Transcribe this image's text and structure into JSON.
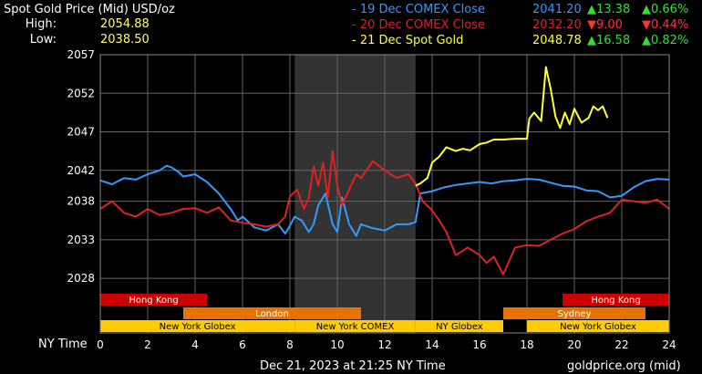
{
  "title": "Spot Gold Price (Mid) USD/oz",
  "high_label": "High:",
  "high_value": "2054.88",
  "low_label": "Low:",
  "low_value": "2038.50",
  "legend": [
    {
      "label": "- 19 Dec COMEX Close",
      "price": "2041.20",
      "change": "13.38",
      "pct": "0.66%",
      "dir": "up",
      "color": "#3399ff"
    },
    {
      "label": "- 20 Dec COMEX Close",
      "price": "2032.20",
      "change": "9.00",
      "pct": "0.44%",
      "dir": "down",
      "color": "#dd2222"
    },
    {
      "label": "- 21 Dec Spot Gold",
      "price": "2048.78",
      "change": "16.58",
      "pct": "0.82%",
      "dir": "up",
      "color": "#ffff33"
    }
  ],
  "x_axis_label": "NY Time",
  "footer_date": "Dec 21, 2023 at 21:25 NY Time",
  "footer_source": "goldprice.org (mid)",
  "colors": {
    "blue": "#3399ff",
    "red": "#dd2222",
    "yellow": "#ffff33",
    "shade": "#333333",
    "grid": "#666666",
    "hongkong": "#cc0000",
    "london": "#e67300",
    "sydney": "#e67300",
    "newyork": "#ffcc00"
  },
  "chart_data": {
    "type": "line",
    "xlim": [
      0,
      24
    ],
    "ylim": [
      2026,
      2057
    ],
    "x_ticks": [
      0,
      2,
      4,
      6,
      8,
      10,
      12,
      14,
      16,
      18,
      20,
      22,
      24
    ],
    "y_ticks": [
      2028,
      2033,
      2038,
      2042,
      2047,
      2052,
      2057
    ],
    "shaded_range": [
      8.2,
      13.3
    ],
    "sessions": [
      {
        "name": "Hong Kong",
        "start": 0,
        "end": 4.5,
        "row": 0,
        "color": "hongkong"
      },
      {
        "name": "Hong Kong",
        "start": 19.5,
        "end": 24,
        "row": 0,
        "color": "hongkong"
      },
      {
        "name": "London",
        "start": 3.5,
        "end": 11,
        "row": 1,
        "color": "london"
      },
      {
        "name": "Sydney",
        "start": 17,
        "end": 23,
        "row": 1,
        "color": "sydney"
      },
      {
        "name": "New York Globex",
        "start": 0,
        "end": 8.2,
        "row": 2,
        "color": "newyork"
      },
      {
        "name": "New York COMEX",
        "start": 8.2,
        "end": 13.3,
        "row": 2,
        "color": "newyork"
      },
      {
        "name": "NY Globex",
        "start": 13.3,
        "end": 17,
        "row": 2,
        "color": "newyork"
      },
      {
        "name": "New York Globex",
        "start": 18,
        "end": 24,
        "row": 2,
        "color": "newyork"
      }
    ],
    "series": [
      {
        "name": "19 Dec COMEX Close",
        "color": "blue",
        "x": [
          0,
          0.5,
          1,
          1.5,
          2,
          2.5,
          2.8,
          3,
          3.3,
          3.5,
          4,
          4.5,
          5,
          5.5,
          5.8,
          6,
          6.5,
          7,
          7.5,
          7.8,
          8,
          8.2,
          8.5,
          8.8,
          9,
          9.2,
          9.5,
          9.8,
          10,
          10.2,
          10.5,
          10.8,
          11,
          11.5,
          12,
          12.5,
          13,
          13.3,
          13.5,
          14,
          14.5,
          15,
          15.5,
          16,
          16.5,
          17,
          17.5,
          18,
          18.5,
          19,
          19.5,
          20,
          20.5,
          21,
          21.5,
          22,
          22.5,
          23,
          23.5,
          24
        ],
        "y": [
          2040.7,
          2040.2,
          2041,
          2040.8,
          2041.5,
          2042,
          2042.6,
          2042.4,
          2041.8,
          2041.2,
          2041.5,
          2040.5,
          2039,
          2037,
          2035.5,
          2036,
          2034.6,
          2034.2,
          2035,
          2033.8,
          2034.8,
          2036,
          2035.5,
          2034,
          2035,
          2037.5,
          2039,
          2035,
          2034,
          2038.5,
          2035,
          2033.5,
          2035,
          2034.5,
          2034.2,
          2035,
          2035,
          2035.3,
          2039,
          2039.3,
          2039.8,
          2040.1,
          2040.3,
          2040.5,
          2040.3,
          2040.6,
          2040.7,
          2040.9,
          2040.8,
          2040.4,
          2040,
          2039.9,
          2039.4,
          2039.3,
          2038.5,
          2038.7,
          2039.8,
          2040.6,
          2040.9,
          2040.8
        ]
      },
      {
        "name": "20 Dec COMEX Close",
        "color": "red",
        "x": [
          0,
          0.5,
          1,
          1.5,
          2,
          2.5,
          3,
          3.5,
          4,
          4.5,
          5,
          5.5,
          6,
          6.5,
          7,
          7.5,
          7.8,
          8,
          8.3,
          8.6,
          8.8,
          9,
          9.2,
          9.4,
          9.6,
          9.8,
          10,
          10.2,
          10.5,
          10.8,
          11,
          11.5,
          12,
          12.5,
          13,
          13.3,
          13.6,
          14,
          14.3,
          14.6,
          15,
          15.5,
          16,
          16.3,
          16.6,
          17,
          17.5,
          18,
          18.5,
          19,
          19.5,
          20,
          20.5,
          21,
          21.5,
          22,
          22.5,
          23,
          23.5,
          24
        ],
        "y": [
          2037,
          2038,
          2036.5,
          2036,
          2037,
          2036.2,
          2036.5,
          2037,
          2037.1,
          2036.5,
          2037.2,
          2035.5,
          2035.2,
          2035,
          2034.7,
          2035,
          2036,
          2038.6,
          2039.5,
          2037,
          2038.5,
          2042.5,
          2040,
          2043,
          2038.5,
          2044.5,
          2040,
          2037.5,
          2039.5,
          2041.5,
          2041,
          2043.2,
          2042,
          2041,
          2041.5,
          2040.3,
          2038,
          2036.8,
          2035.5,
          2034,
          2031,
          2032,
          2031,
          2030,
          2030.8,
          2028.5,
          2032,
          2032.3,
          2032.2,
          2033,
          2033.8,
          2034.4,
          2035.4,
          2036,
          2036.5,
          2038.2,
          2038,
          2037.8,
          2038.2,
          2037
        ]
      },
      {
        "name": "21 Dec Spot Gold",
        "color": "yellow",
        "x": [
          13.3,
          13.5,
          13.8,
          14,
          14.3,
          14.6,
          15,
          15.3,
          15.6,
          16,
          16.3,
          16.6,
          17,
          17.5,
          18,
          18.1,
          18.3,
          18.6,
          18.8,
          19,
          19.2,
          19.4,
          19.6,
          19.8,
          20,
          20.3,
          20.6,
          20.8,
          21,
          21.2,
          21.4
        ],
        "y": [
          2040,
          2040.3,
          2041,
          2043,
          2043.8,
          2045,
          2044.5,
          2044.8,
          2044.6,
          2045.4,
          2045.6,
          2046,
          2046,
          2046.1,
          2046.1,
          2048.7,
          2049.5,
          2048.4,
          2055.4,
          2052.6,
          2049,
          2047.5,
          2049.5,
          2048,
          2050,
          2048.2,
          2048.8,
          2050.3,
          2049.8,
          2050.3,
          2048.8
        ]
      }
    ]
  }
}
